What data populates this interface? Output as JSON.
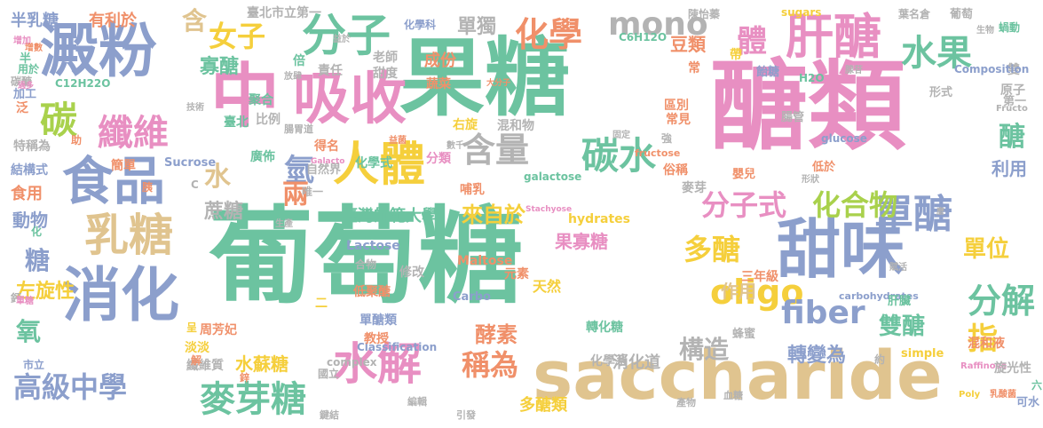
{
  "palette": {
    "green": "#6cc3a0",
    "pink": "#e88fc2",
    "blue": "#8c9fcc",
    "tan": "#e0c48f",
    "orange": "#f0906a",
    "lime": "#a9d14c",
    "yellow": "#f5cf3c",
    "gray": "#b3b3b3"
  },
  "words": [
    {
      "text": "葡萄糖",
      "color": "green"
    },
    {
      "text": "果糖",
      "color": "green"
    },
    {
      "text": "醣類",
      "color": "pink"
    },
    {
      "text": "中",
      "color": "pink"
    },
    {
      "text": "saccharide",
      "color": "tan"
    },
    {
      "text": "吸收",
      "color": "pink"
    },
    {
      "text": "澱粉",
      "color": "blue"
    },
    {
      "text": "食品",
      "color": "blue"
    },
    {
      "text": "消化",
      "color": "blue"
    },
    {
      "text": "甜味",
      "color": "blue"
    },
    {
      "text": "人體",
      "color": "yellow"
    },
    {
      "text": "分子",
      "color": "green"
    },
    {
      "text": "乳糖",
      "color": "tan"
    },
    {
      "text": "肝醣",
      "color": "pink"
    },
    {
      "text": "水解",
      "color": "pink"
    },
    {
      "text": "碳水",
      "color": "green"
    },
    {
      "text": "含量",
      "color": "gray"
    },
    {
      "text": "碳",
      "color": "lime"
    },
    {
      "text": "纖維",
      "color": "pink"
    },
    {
      "text": "麥芽糖",
      "color": "green"
    },
    {
      "text": "水果",
      "color": "green"
    },
    {
      "text": "單醣",
      "color": "blue"
    },
    {
      "text": "分子式",
      "color": "pink"
    },
    {
      "text": "化合物",
      "color": "lime"
    },
    {
      "text": "化學",
      "color": "orange"
    },
    {
      "text": "mono",
      "color": "gray"
    },
    {
      "text": "oligo",
      "color": "yellow"
    },
    {
      "text": "fiber",
      "color": "blue"
    },
    {
      "text": "多醣",
      "color": "yellow"
    },
    {
      "text": "分解",
      "color": "green"
    },
    {
      "text": "稱為",
      "color": "orange"
    },
    {
      "text": "高級中學",
      "color": "blue"
    },
    {
      "text": "體",
      "color": "pink"
    },
    {
      "text": "女子",
      "color": "yellow"
    },
    {
      "text": "單獨",
      "color": "gray"
    },
    {
      "text": "半乳糖",
      "color": "blue"
    },
    {
      "text": "有利於",
      "color": "orange"
    },
    {
      "text": "含",
      "color": "tan"
    },
    {
      "text": "寡醣",
      "color": "green"
    },
    {
      "text": "氫",
      "color": "blue"
    },
    {
      "text": "氧",
      "color": "green"
    },
    {
      "text": "糖",
      "color": "blue"
    },
    {
      "text": "水",
      "color": "tan"
    },
    {
      "text": "蔗糖",
      "color": "gray"
    },
    {
      "text": "兩",
      "color": "orange"
    },
    {
      "text": "左旋性",
      "color": "yellow"
    },
    {
      "text": "單位",
      "color": "yellow"
    },
    {
      "text": "雙醣",
      "color": "green"
    },
    {
      "text": "指",
      "color": "yellow"
    },
    {
      "text": "醣",
      "color": "green"
    },
    {
      "text": "構造",
      "color": "gray"
    },
    {
      "text": "酵素",
      "color": "orange"
    },
    {
      "text": "來自於",
      "color": "yellow"
    },
    {
      "text": "果寡糖",
      "color": "pink"
    },
    {
      "text": "轉變為",
      "color": "blue"
    },
    {
      "text": "水蘇糖",
      "color": "yellow"
    },
    {
      "text": "作用",
      "color": "tan"
    },
    {
      "text": "成份",
      "color": "orange"
    },
    {
      "text": "豆類",
      "color": "orange"
    },
    {
      "text": "動物",
      "color": "blue"
    },
    {
      "text": "食用",
      "color": "orange"
    },
    {
      "text": "利用",
      "color": "blue"
    },
    {
      "text": "消化道",
      "color": "gray"
    },
    {
      "text": "多醣類",
      "color": "yellow"
    },
    {
      "text": "臺北市立第一",
      "color": "gray"
    },
    {
      "text": "化學科",
      "color": "blue"
    },
    {
      "text": "sugars",
      "color": "yellow"
    },
    {
      "text": "C6H12O",
      "color": "green"
    },
    {
      "text": "陳怡蓁",
      "color": "gray"
    },
    {
      "text": "葉名倉",
      "color": "gray"
    },
    {
      "text": "葡萄",
      "color": "gray"
    },
    {
      "text": "蝸動",
      "color": "green"
    },
    {
      "text": "雙",
      "color": "gray"
    },
    {
      "text": "H2O",
      "color": "green"
    },
    {
      "text": "Composition",
      "color": "blue"
    },
    {
      "text": "C12H22O",
      "color": "green"
    },
    {
      "text": "Sucrose",
      "color": "blue"
    },
    {
      "text": "glucose",
      "color": "blue"
    },
    {
      "text": "galactose",
      "color": "green"
    },
    {
      "text": "fructose",
      "color": "orange"
    },
    {
      "text": "hydrates",
      "color": "yellow"
    },
    {
      "text": "Lactose",
      "color": "blue"
    },
    {
      "text": "Maltose",
      "color": "orange"
    },
    {
      "text": "Carbo",
      "color": "blue"
    },
    {
      "text": "Classification",
      "color": "blue"
    },
    {
      "text": "complex",
      "color": "gray"
    },
    {
      "text": "carbohydrates",
      "color": "blue"
    },
    {
      "text": "simple",
      "color": "yellow"
    },
    {
      "text": "Raffinose",
      "color": "pink"
    },
    {
      "text": "Stachyose",
      "color": "pink"
    },
    {
      "text": "Galacto",
      "color": "pink"
    },
    {
      "text": "Poly",
      "color": "yellow"
    },
    {
      "text": "Fructo",
      "color": "gray"
    },
    {
      "text": "臺灣師範大學",
      "color": "green"
    },
    {
      "text": "轉化糖",
      "color": "green"
    },
    {
      "text": "單醣類",
      "color": "blue"
    },
    {
      "text": "低聚醣",
      "color": "orange"
    },
    {
      "text": "纖維質",
      "color": "gray"
    },
    {
      "text": "周芳妃",
      "color": "orange"
    },
    {
      "text": "淡淡",
      "color": "yellow"
    },
    {
      "text": "教授",
      "color": "orange"
    },
    {
      "text": "化學系",
      "color": "gray"
    },
    {
      "text": "旋光性",
      "color": "gray"
    },
    {
      "text": "混和液",
      "color": "orange"
    },
    {
      "text": "蜂蜜",
      "color": "gray"
    },
    {
      "text": "肝臟",
      "color": "green"
    },
    {
      "text": "三年級",
      "color": "orange"
    },
    {
      "text": "天然",
      "color": "yellow"
    },
    {
      "text": "元素",
      "color": "orange"
    },
    {
      "text": "修改",
      "color": "gray"
    },
    {
      "text": "合物",
      "color": "gray"
    },
    {
      "text": "國立",
      "color": "gray"
    },
    {
      "text": "鍵結",
      "color": "gray"
    },
    {
      "text": "編輯",
      "color": "gray"
    },
    {
      "text": "引發",
      "color": "gray"
    },
    {
      "text": "產物",
      "color": "gray"
    },
    {
      "text": "血糖",
      "color": "gray"
    },
    {
      "text": "可水",
      "color": "blue"
    },
    {
      "text": "六",
      "color": "green"
    },
    {
      "text": "約",
      "color": "gray"
    },
    {
      "text": "市立",
      "color": "blue"
    },
    {
      "text": "鈣",
      "color": "gray"
    },
    {
      "text": "解",
      "color": "orange"
    },
    {
      "text": "呈",
      "color": "yellow"
    },
    {
      "text": "化",
      "color": "green"
    },
    {
      "text": "單糖",
      "color": "pink"
    },
    {
      "text": "加工",
      "color": "blue"
    },
    {
      "text": "泛",
      "color": "orange"
    },
    {
      "text": "碳醣",
      "color": "gray"
    },
    {
      "text": "用於",
      "color": "green"
    },
    {
      "text": "半",
      "color": "green"
    },
    {
      "text": "過多",
      "color": "pink"
    },
    {
      "text": "增加",
      "color": "pink"
    },
    {
      "text": "特稱為",
      "color": "gray"
    },
    {
      "text": "結構式",
      "color": "blue"
    },
    {
      "text": "簡單",
      "color": "orange"
    },
    {
      "text": "大分子",
      "color": "orange"
    },
    {
      "text": "蔬菜",
      "color": "orange"
    },
    {
      "text": "甜度",
      "color": "gray"
    },
    {
      "text": "老師",
      "color": "gray"
    },
    {
      "text": "倍",
      "color": "green"
    },
    {
      "text": "責任",
      "color": "gray"
    },
    {
      "text": "放肆",
      "color": "gray"
    },
    {
      "text": "聚合",
      "color": "green"
    },
    {
      "text": "比例",
      "color": "gray"
    },
    {
      "text": "臺北",
      "color": "green"
    },
    {
      "text": "腸胃道",
      "color": "gray"
    },
    {
      "text": "得名",
      "color": "orange"
    },
    {
      "text": "廣佈",
      "color": "green"
    },
    {
      "text": "自然界",
      "color": "gray"
    },
    {
      "text": "唯一",
      "color": "gray"
    },
    {
      "text": "化學式",
      "color": "green"
    },
    {
      "text": "分類",
      "color": "pink"
    },
    {
      "text": "右旋",
      "color": "yellow"
    },
    {
      "text": "混和物",
      "color": "gray"
    },
    {
      "text": "哺乳",
      "color": "orange"
    },
    {
      "text": "俗稱",
      "color": "orange"
    },
    {
      "text": "麥芽",
      "color": "gray"
    },
    {
      "text": "常見",
      "color": "orange"
    },
    {
      "text": "區別",
      "color": "orange"
    },
    {
      "text": "腸管",
      "color": "gray"
    },
    {
      "text": "飴糖",
      "color": "blue"
    },
    {
      "text": "形式",
      "color": "gray"
    },
    {
      "text": "原子",
      "color": "gray"
    },
    {
      "text": "第一",
      "color": "gray"
    },
    {
      "text": "低於",
      "color": "orange"
    },
    {
      "text": "嬰兒",
      "color": "orange"
    },
    {
      "text": "強",
      "color": "gray"
    },
    {
      "text": "固定",
      "color": "gray"
    },
    {
      "text": "數千",
      "color": "gray"
    },
    {
      "text": "益菌",
      "color": "orange"
    },
    {
      "text": "生物",
      "color": "gray"
    },
    {
      "text": "常",
      "color": "orange"
    },
    {
      "text": "帶",
      "color": "yellow"
    },
    {
      "text": "乳酸菌",
      "color": "orange"
    },
    {
      "text": "腺苷",
      "color": "gray"
    },
    {
      "text": "技術",
      "color": "gray"
    },
    {
      "text": "益於",
      "color": "gray"
    },
    {
      "text": "助",
      "color": "orange"
    },
    {
      "text": "胰",
      "color": "orange"
    },
    {
      "text": "生產",
      "color": "gray"
    },
    {
      "text": "增數",
      "color": "orange"
    },
    {
      "text": "形狀",
      "color": "gray"
    },
    {
      "text": "賦活",
      "color": "gray"
    },
    {
      "text": "C",
      "color": "gray"
    },
    {
      "text": "鋅",
      "color": "orange"
    },
    {
      "text": "二",
      "color": "yellow"
    },
    {
      "text": "麼",
      "color": "gray"
    }
  ]
}
